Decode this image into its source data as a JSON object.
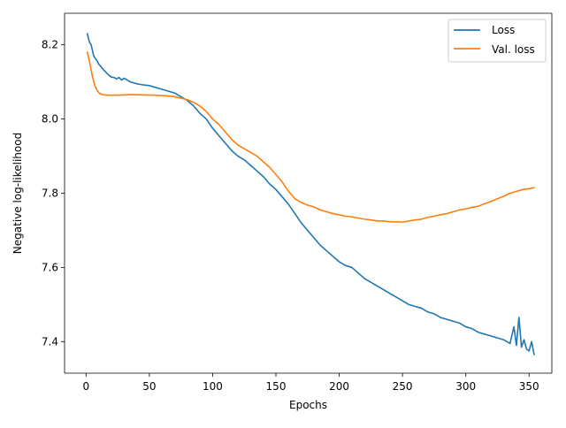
{
  "chart_data": {
    "type": "line",
    "title": "",
    "xlabel": "Epochs",
    "ylabel": "Negative log-likelihood",
    "xlim": [
      -17,
      368
    ],
    "ylim": [
      7.315,
      8.285
    ],
    "xticks": [
      0,
      50,
      100,
      150,
      200,
      250,
      300,
      350
    ],
    "yticks": [
      7.4,
      7.6,
      7.8,
      8.0,
      8.2
    ],
    "ytick_labels": [
      "7.4",
      "7.6",
      "7.8",
      "8.0",
      "8.2"
    ],
    "grid": false,
    "legend_position": "top-right",
    "series": [
      {
        "name": "Loss",
        "color": "#1f77b4",
        "points": [
          [
            1,
            8.23
          ],
          [
            2,
            8.215
          ],
          [
            3,
            8.205
          ],
          [
            4,
            8.2
          ],
          [
            5,
            8.185
          ],
          [
            6,
            8.17
          ],
          [
            7,
            8.165
          ],
          [
            8,
            8.16
          ],
          [
            9,
            8.155
          ],
          [
            10,
            8.148
          ],
          [
            12,
            8.14
          ],
          [
            14,
            8.132
          ],
          [
            16,
            8.125
          ],
          [
            18,
            8.118
          ],
          [
            20,
            8.113
          ],
          [
            22,
            8.112
          ],
          [
            24,
            8.108
          ],
          [
            26,
            8.112
          ],
          [
            28,
            8.105
          ],
          [
            30,
            8.11
          ],
          [
            35,
            8.1
          ],
          [
            40,
            8.095
          ],
          [
            45,
            8.092
          ],
          [
            50,
            8.09
          ],
          [
            55,
            8.085
          ],
          [
            60,
            8.08
          ],
          [
            65,
            8.075
          ],
          [
            70,
            8.07
          ],
          [
            75,
            8.06
          ],
          [
            80,
            8.05
          ],
          [
            85,
            8.035
          ],
          [
            90,
            8.015
          ],
          [
            95,
            8.0
          ],
          [
            100,
            7.975
          ],
          [
            105,
            7.955
          ],
          [
            110,
            7.935
          ],
          [
            115,
            7.915
          ],
          [
            120,
            7.9
          ],
          [
            125,
            7.89
          ],
          [
            130,
            7.875
          ],
          [
            135,
            7.86
          ],
          [
            140,
            7.845
          ],
          [
            145,
            7.825
          ],
          [
            150,
            7.81
          ],
          [
            155,
            7.79
          ],
          [
            160,
            7.77
          ],
          [
            165,
            7.745
          ],
          [
            170,
            7.72
          ],
          [
            175,
            7.7
          ],
          [
            180,
            7.68
          ],
          [
            185,
            7.66
          ],
          [
            190,
            7.645
          ],
          [
            195,
            7.63
          ],
          [
            200,
            7.615
          ],
          [
            205,
            7.605
          ],
          [
            210,
            7.6
          ],
          [
            215,
            7.585
          ],
          [
            220,
            7.57
          ],
          [
            225,
            7.56
          ],
          [
            230,
            7.55
          ],
          [
            235,
            7.54
          ],
          [
            240,
            7.53
          ],
          [
            245,
            7.52
          ],
          [
            250,
            7.51
          ],
          [
            255,
            7.5
          ],
          [
            260,
            7.495
          ],
          [
            265,
            7.49
          ],
          [
            270,
            7.48
          ],
          [
            275,
            7.475
          ],
          [
            280,
            7.465
          ],
          [
            285,
            7.46
          ],
          [
            290,
            7.455
          ],
          [
            295,
            7.45
          ],
          [
            300,
            7.44
          ],
          [
            305,
            7.435
          ],
          [
            310,
            7.425
          ],
          [
            315,
            7.42
          ],
          [
            320,
            7.415
          ],
          [
            325,
            7.41
          ],
          [
            330,
            7.405
          ],
          [
            335,
            7.395
          ],
          [
            338,
            7.44
          ],
          [
            340,
            7.39
          ],
          [
            342,
            7.465
          ],
          [
            344,
            7.385
          ],
          [
            346,
            7.405
          ],
          [
            348,
            7.38
          ],
          [
            350,
            7.375
          ],
          [
            352,
            7.4
          ],
          [
            354,
            7.365
          ]
        ]
      },
      {
        "name": "Val. loss",
        "color": "#ff7f0e",
        "points": [
          [
            1,
            8.18
          ],
          [
            3,
            8.15
          ],
          [
            5,
            8.115
          ],
          [
            7,
            8.09
          ],
          [
            9,
            8.075
          ],
          [
            11,
            8.068
          ],
          [
            14,
            8.065
          ],
          [
            18,
            8.064
          ],
          [
            25,
            8.064
          ],
          [
            35,
            8.066
          ],
          [
            45,
            8.065
          ],
          [
            55,
            8.064
          ],
          [
            65,
            8.062
          ],
          [
            70,
            8.06
          ],
          [
            75,
            8.056
          ],
          [
            80,
            8.052
          ],
          [
            85,
            8.045
          ],
          [
            90,
            8.035
          ],
          [
            95,
            8.02
          ],
          [
            100,
            8.0
          ],
          [
            105,
            7.985
          ],
          [
            110,
            7.965
          ],
          [
            115,
            7.945
          ],
          [
            120,
            7.93
          ],
          [
            125,
            7.92
          ],
          [
            130,
            7.91
          ],
          [
            135,
            7.9
          ],
          [
            140,
            7.885
          ],
          [
            145,
            7.87
          ],
          [
            150,
            7.85
          ],
          [
            155,
            7.83
          ],
          [
            160,
            7.805
          ],
          [
            165,
            7.785
          ],
          [
            170,
            7.775
          ],
          [
            175,
            7.768
          ],
          [
            180,
            7.763
          ],
          [
            185,
            7.755
          ],
          [
            190,
            7.75
          ],
          [
            195,
            7.745
          ],
          [
            200,
            7.742
          ],
          [
            205,
            7.738
          ],
          [
            210,
            7.736
          ],
          [
            215,
            7.733
          ],
          [
            220,
            7.73
          ],
          [
            225,
            7.728
          ],
          [
            230,
            7.725
          ],
          [
            235,
            7.725
          ],
          [
            240,
            7.723
          ],
          [
            245,
            7.723
          ],
          [
            250,
            7.722
          ],
          [
            255,
            7.725
          ],
          [
            260,
            7.728
          ],
          [
            265,
            7.73
          ],
          [
            270,
            7.735
          ],
          [
            275,
            7.738
          ],
          [
            280,
            7.742
          ],
          [
            285,
            7.745
          ],
          [
            290,
            7.75
          ],
          [
            295,
            7.755
          ],
          [
            300,
            7.758
          ],
          [
            305,
            7.762
          ],
          [
            310,
            7.765
          ],
          [
            315,
            7.772
          ],
          [
            320,
            7.778
          ],
          [
            325,
            7.785
          ],
          [
            330,
            7.792
          ],
          [
            335,
            7.8
          ],
          [
            340,
            7.805
          ],
          [
            345,
            7.81
          ],
          [
            350,
            7.812
          ],
          [
            354,
            7.815
          ]
        ]
      }
    ]
  }
}
